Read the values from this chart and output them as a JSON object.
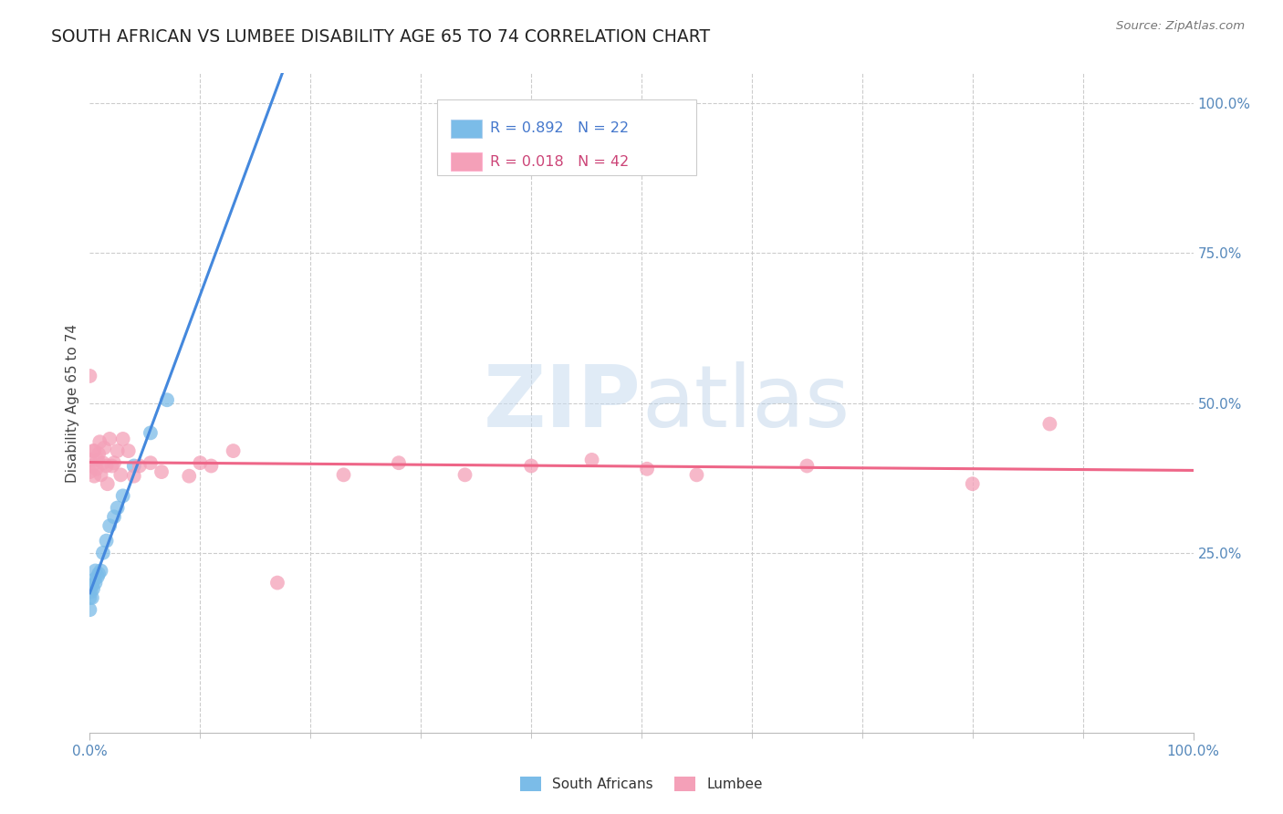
{
  "title": "SOUTH AFRICAN VS LUMBEE DISABILITY AGE 65 TO 74 CORRELATION CHART",
  "source": "Source: ZipAtlas.com",
  "ylabel": "Disability Age 65 to 74",
  "xlim": [
    0.0,
    1.0
  ],
  "ylim": [
    -0.05,
    1.05
  ],
  "south_african_R": "0.892",
  "south_african_N": "22",
  "lumbee_R": "0.018",
  "lumbee_N": "42",
  "south_african_color": "#7BBCE8",
  "lumbee_color": "#F4A0B8",
  "sa_line_color": "#4488DD",
  "lumbee_line_color": "#EE6688",
  "watermark_zip": "ZIP",
  "watermark_atlas": "atlas",
  "background_color": "#FFFFFF",
  "sa_scatter_x": [
    0.0,
    0.0,
    0.0,
    0.001,
    0.002,
    0.002,
    0.003,
    0.004,
    0.005,
    0.005,
    0.007,
    0.008,
    0.01,
    0.012,
    0.015,
    0.018,
    0.022,
    0.025,
    0.03,
    0.04,
    0.055,
    0.07
  ],
  "sa_scatter_y": [
    0.155,
    0.175,
    0.195,
    0.185,
    0.175,
    0.195,
    0.19,
    0.205,
    0.2,
    0.22,
    0.21,
    0.215,
    0.22,
    0.25,
    0.27,
    0.295,
    0.31,
    0.325,
    0.345,
    0.395,
    0.45,
    0.505
  ],
  "lumbee_scatter_x": [
    0.0,
    0.0,
    0.0,
    0.002,
    0.003,
    0.004,
    0.004,
    0.006,
    0.007,
    0.008,
    0.009,
    0.01,
    0.012,
    0.013,
    0.015,
    0.016,
    0.018,
    0.02,
    0.022,
    0.025,
    0.028,
    0.03,
    0.035,
    0.04,
    0.045,
    0.055,
    0.065,
    0.09,
    0.1,
    0.11,
    0.13,
    0.17,
    0.23,
    0.28,
    0.34,
    0.4,
    0.455,
    0.505,
    0.55,
    0.65,
    0.8,
    0.87
  ],
  "lumbee_scatter_y": [
    0.385,
    0.405,
    0.545,
    0.395,
    0.42,
    0.378,
    0.42,
    0.39,
    0.405,
    0.415,
    0.435,
    0.38,
    0.4,
    0.425,
    0.395,
    0.365,
    0.44,
    0.395,
    0.4,
    0.42,
    0.38,
    0.44,
    0.42,
    0.378,
    0.395,
    0.4,
    0.385,
    0.378,
    0.4,
    0.395,
    0.42,
    0.2,
    0.38,
    0.4,
    0.38,
    0.395,
    0.405,
    0.39,
    0.38,
    0.395,
    0.365,
    0.465
  ]
}
